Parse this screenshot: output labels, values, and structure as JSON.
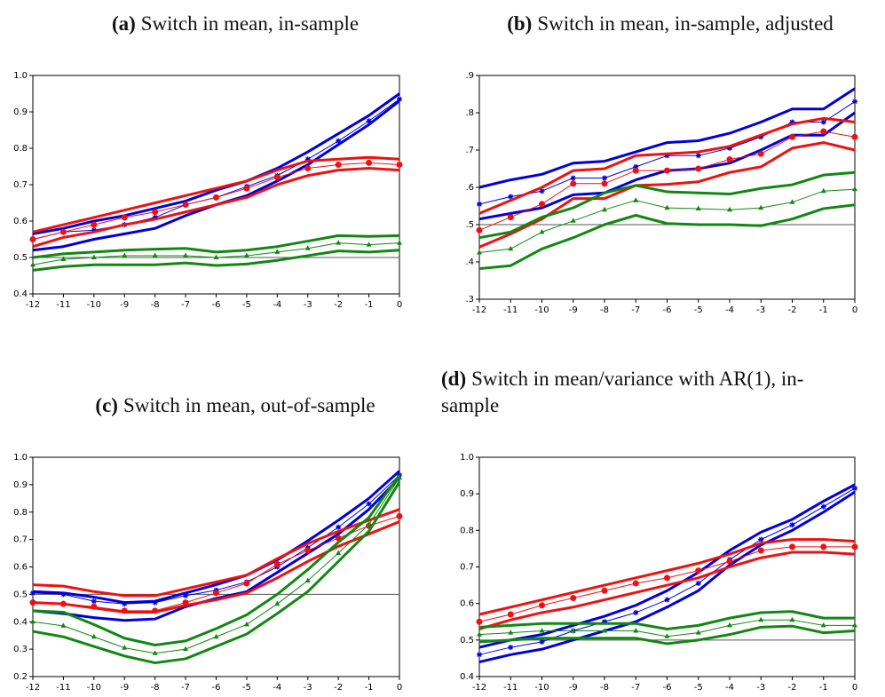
{
  "chart_data": [
    {
      "type": "line",
      "label": "(a)",
      "title": "Switch in mean, in-sample",
      "x": [
        -12,
        -11,
        -10,
        -9,
        -8,
        -7,
        -6,
        -5,
        -4,
        -3,
        -2,
        -1,
        0
      ],
      "xlim": [
        -12,
        0
      ],
      "xticks": [
        -12,
        -11,
        -10,
        -9,
        -8,
        -7,
        -6,
        -5,
        -4,
        -3,
        -2,
        -1,
        0
      ],
      "ylim": [
        0.4,
        1
      ],
      "yticks": [
        0.4,
        0.5,
        0.6,
        0.7,
        0.8,
        0.9,
        {
          "value": 1,
          "label": "1.0"
        }
      ],
      "hline": 0.5,
      "series": [
        {
          "color": "#0000dd",
          "width": 3,
          "values": [
            0.565,
            0.58,
            0.6,
            0.615,
            0.635,
            0.655,
            0.685,
            0.71,
            0.745,
            0.79,
            0.84,
            0.89,
            0.95
          ]
        },
        {
          "color": "#0000dd",
          "width": 3,
          "values": [
            0.52,
            0.53,
            0.55,
            0.565,
            0.58,
            0.615,
            0.645,
            0.67,
            0.71,
            0.755,
            0.81,
            0.865,
            0.93
          ]
        },
        {
          "color": "#0000dd",
          "width": 1,
          "marker": "star",
          "values": [
            0.55,
            0.57,
            0.575,
            0.59,
            0.61,
            0.645,
            0.665,
            0.695,
            0.725,
            0.77,
            0.82,
            0.875,
            0.935
          ]
        },
        {
          "color": "#ee1111",
          "width": 3,
          "values": [
            0.57,
            0.59,
            0.61,
            0.63,
            0.65,
            0.67,
            0.69,
            0.71,
            0.74,
            0.765,
            0.77,
            0.775,
            0.77
          ]
        },
        {
          "color": "#ee1111",
          "width": 3,
          "values": [
            0.53,
            0.555,
            0.57,
            0.59,
            0.605,
            0.625,
            0.645,
            0.665,
            0.7,
            0.725,
            0.74,
            0.745,
            0.74
          ]
        },
        {
          "color": "#ee1111",
          "width": 1,
          "marker": "circle",
          "values": [
            0.55,
            0.57,
            0.59,
            0.61,
            0.625,
            0.645,
            0.665,
            0.69,
            0.72,
            0.745,
            0.755,
            0.76,
            0.755
          ]
        },
        {
          "color": "#118811",
          "width": 3,
          "values": [
            0.5,
            0.51,
            0.515,
            0.52,
            0.523,
            0.525,
            0.515,
            0.52,
            0.53,
            0.545,
            0.56,
            0.558,
            0.56
          ]
        },
        {
          "color": "#118811",
          "width": 3,
          "values": [
            0.465,
            0.475,
            0.48,
            0.48,
            0.48,
            0.485,
            0.478,
            0.482,
            0.492,
            0.505,
            0.518,
            0.515,
            0.52
          ]
        },
        {
          "color": "#118811",
          "width": 1,
          "marker": "triangle",
          "values": [
            0.48,
            0.495,
            0.5,
            0.505,
            0.505,
            0.505,
            0.5,
            0.505,
            0.515,
            0.525,
            0.54,
            0.535,
            0.54
          ]
        }
      ]
    },
    {
      "type": "line",
      "label": "(b)",
      "title": "Switch in mean, in-sample, adjusted",
      "x": [
        -12,
        -11,
        -10,
        -9,
        -8,
        -7,
        -6,
        -5,
        -4,
        -3,
        -2,
        -1,
        0
      ],
      "xlim": [
        -12,
        0
      ],
      "xticks": [
        -12,
        -11,
        -10,
        -9,
        -8,
        -7,
        -6,
        -5,
        -4,
        -3,
        -2,
        -1,
        0
      ],
      "ylim": [
        0.3,
        0.9
      ],
      "yticks": [
        {
          "value": 0.3,
          "label": ".3"
        },
        {
          "value": 0.4,
          "label": ".4"
        },
        {
          "value": 0.5,
          "label": ".5"
        },
        {
          "value": 0.6,
          "label": ".6"
        },
        {
          "value": 0.7,
          "label": ".7"
        },
        {
          "value": 0.8,
          "label": ".8"
        },
        {
          "value": 0.9,
          "label": ".9"
        }
      ],
      "hline": 0.5,
      "series": [
        {
          "color": "#0000dd",
          "width": 3,
          "values": [
            0.6,
            0.62,
            0.635,
            0.665,
            0.67,
            0.695,
            0.72,
            0.725,
            0.745,
            0.775,
            0.81,
            0.81,
            0.865
          ]
        },
        {
          "color": "#0000dd",
          "width": 3,
          "values": [
            0.515,
            0.53,
            0.545,
            0.58,
            0.585,
            0.62,
            0.645,
            0.65,
            0.665,
            0.7,
            0.74,
            0.74,
            0.8
          ]
        },
        {
          "color": "#0000dd",
          "width": 1,
          "marker": "star",
          "values": [
            0.555,
            0.575,
            0.59,
            0.625,
            0.625,
            0.655,
            0.685,
            0.685,
            0.705,
            0.735,
            0.775,
            0.775,
            0.83
          ]
        },
        {
          "color": "#ee1111",
          "width": 3,
          "values": [
            0.53,
            0.565,
            0.6,
            0.645,
            0.65,
            0.685,
            0.69,
            0.695,
            0.71,
            0.74,
            0.77,
            0.785,
            0.775
          ]
        },
        {
          "color": "#ee1111",
          "width": 3,
          "values": [
            0.44,
            0.475,
            0.515,
            0.57,
            0.57,
            0.605,
            0.608,
            0.615,
            0.64,
            0.655,
            0.705,
            0.72,
            0.7
          ]
        },
        {
          "color": "#ee1111",
          "width": 1,
          "marker": "circle",
          "values": [
            0.485,
            0.52,
            0.555,
            0.61,
            0.61,
            0.645,
            0.645,
            0.65,
            0.675,
            0.69,
            0.735,
            0.75,
            0.735
          ]
        },
        {
          "color": "#118811",
          "width": 3,
          "values": [
            0.465,
            0.48,
            0.52,
            0.545,
            0.585,
            0.605,
            0.588,
            0.585,
            0.582,
            0.597,
            0.607,
            0.633,
            0.64
          ]
        },
        {
          "color": "#118811",
          "width": 3,
          "values": [
            0.382,
            0.39,
            0.435,
            0.465,
            0.5,
            0.525,
            0.503,
            0.5,
            0.5,
            0.497,
            0.515,
            0.543,
            0.553
          ]
        },
        {
          "color": "#118811",
          "width": 1,
          "marker": "triangle",
          "values": [
            0.425,
            0.435,
            0.48,
            0.51,
            0.54,
            0.565,
            0.545,
            0.543,
            0.54,
            0.545,
            0.56,
            0.59,
            0.595
          ]
        }
      ]
    },
    {
      "type": "line",
      "label": "(c)",
      "title": "Switch in mean, out-of-sample",
      "x": [
        -12,
        -11,
        -10,
        -9,
        -8,
        -7,
        -6,
        -5,
        -4,
        -3,
        -2,
        -1,
        0
      ],
      "xlim": [
        -12,
        0
      ],
      "xticks": [
        -12,
        -11,
        -10,
        -9,
        -8,
        -7,
        -6,
        -5,
        -4,
        -3,
        -2,
        -1,
        0
      ],
      "ylim": [
        0.2,
        1
      ],
      "yticks": [
        0.2,
        0.3,
        0.4,
        0.5,
        0.6,
        0.7,
        0.8,
        0.9,
        {
          "value": 1,
          "label": "1.0"
        }
      ],
      "hline": 0.5,
      "series": [
        {
          "color": "#0000dd",
          "width": 3,
          "values": [
            0.51,
            0.505,
            0.49,
            0.47,
            0.475,
            0.505,
            0.535,
            0.57,
            0.625,
            0.695,
            0.77,
            0.85,
            0.95
          ]
        },
        {
          "color": "#0000dd",
          "width": 3,
          "values": [
            0.44,
            0.43,
            0.415,
            0.405,
            0.41,
            0.455,
            0.485,
            0.51,
            0.58,
            0.65,
            0.72,
            0.81,
            0.925
          ]
        },
        {
          "color": "#0000dd",
          "width": 1,
          "marker": "star",
          "values": [
            0.505,
            0.5,
            0.475,
            0.465,
            0.47,
            0.495,
            0.515,
            0.545,
            0.6,
            0.67,
            0.745,
            0.83,
            0.935
          ]
        },
        {
          "color": "#ee1111",
          "width": 3,
          "values": [
            0.535,
            0.53,
            0.51,
            0.495,
            0.495,
            0.52,
            0.545,
            0.57,
            0.63,
            0.685,
            0.73,
            0.77,
            0.81
          ]
        },
        {
          "color": "#ee1111",
          "width": 3,
          "values": [
            0.47,
            0.465,
            0.45,
            0.435,
            0.435,
            0.46,
            0.48,
            0.505,
            0.56,
            0.62,
            0.675,
            0.72,
            0.765
          ]
        },
        {
          "color": "#ee1111",
          "width": 1,
          "marker": "circle",
          "values": [
            0.47,
            0.465,
            0.455,
            0.44,
            0.44,
            0.47,
            0.505,
            0.54,
            0.61,
            0.66,
            0.705,
            0.75,
            0.785
          ]
        },
        {
          "color": "#118811",
          "width": 3,
          "values": [
            0.44,
            0.435,
            0.39,
            0.34,
            0.315,
            0.33,
            0.375,
            0.425,
            0.5,
            0.59,
            0.69,
            0.78,
            0.935
          ]
        },
        {
          "color": "#118811",
          "width": 3,
          "values": [
            0.365,
            0.345,
            0.31,
            0.275,
            0.25,
            0.265,
            0.31,
            0.355,
            0.43,
            0.51,
            0.62,
            0.73,
            0.91
          ]
        },
        {
          "color": "#118811",
          "width": 1,
          "marker": "triangle",
          "values": [
            0.4,
            0.385,
            0.345,
            0.305,
            0.285,
            0.3,
            0.345,
            0.39,
            0.465,
            0.55,
            0.65,
            0.755,
            0.925
          ]
        }
      ]
    },
    {
      "type": "line",
      "label": "(d)",
      "title": "Switch in mean/variance with AR(1), in-sample",
      "x": [
        -12,
        -11,
        -10,
        -9,
        -8,
        -7,
        -6,
        -5,
        -4,
        -3,
        -2,
        -1,
        0
      ],
      "xlim": [
        -12,
        0
      ],
      "xticks": [
        -12,
        -11,
        -10,
        -9,
        -8,
        -7,
        -6,
        -5,
        -4,
        -3,
        -2,
        -1,
        0
      ],
      "ylim": [
        0.4,
        1
      ],
      "yticks": [
        0.4,
        0.5,
        0.6,
        0.7,
        0.8,
        0.9,
        {
          "value": 1,
          "label": "1.0"
        }
      ],
      "hline": 0.5,
      "series": [
        {
          "color": "#0000dd",
          "width": 3,
          "values": [
            0.48,
            0.5,
            0.515,
            0.54,
            0.565,
            0.595,
            0.635,
            0.685,
            0.745,
            0.795,
            0.83,
            0.88,
            0.925
          ]
        },
        {
          "color": "#0000dd",
          "width": 3,
          "values": [
            0.44,
            0.46,
            0.475,
            0.5,
            0.525,
            0.55,
            0.59,
            0.635,
            0.705,
            0.76,
            0.8,
            0.85,
            0.905
          ]
        },
        {
          "color": "#0000dd",
          "width": 1,
          "marker": "star",
          "values": [
            0.46,
            0.48,
            0.495,
            0.525,
            0.55,
            0.575,
            0.61,
            0.655,
            0.72,
            0.775,
            0.815,
            0.865,
            0.915
          ]
        },
        {
          "color": "#ee1111",
          "width": 3,
          "values": [
            0.57,
            0.59,
            0.61,
            0.63,
            0.65,
            0.67,
            0.69,
            0.71,
            0.735,
            0.765,
            0.775,
            0.775,
            0.77
          ]
        },
        {
          "color": "#ee1111",
          "width": 3,
          "values": [
            0.53,
            0.555,
            0.575,
            0.59,
            0.61,
            0.63,
            0.65,
            0.67,
            0.7,
            0.725,
            0.74,
            0.74,
            0.735
          ]
        },
        {
          "color": "#ee1111",
          "width": 1,
          "marker": "circle",
          "values": [
            0.55,
            0.57,
            0.595,
            0.615,
            0.635,
            0.655,
            0.67,
            0.69,
            0.715,
            0.745,
            0.755,
            0.755,
            0.755
          ]
        },
        {
          "color": "#118811",
          "width": 3,
          "values": [
            0.535,
            0.54,
            0.545,
            0.545,
            0.545,
            0.545,
            0.53,
            0.54,
            0.56,
            0.575,
            0.578,
            0.56,
            0.56
          ]
        },
        {
          "color": "#118811",
          "width": 3,
          "values": [
            0.495,
            0.5,
            0.505,
            0.505,
            0.505,
            0.505,
            0.49,
            0.5,
            0.515,
            0.535,
            0.538,
            0.52,
            0.525
          ]
        },
        {
          "color": "#118811",
          "width": 1,
          "marker": "triangle",
          "values": [
            0.515,
            0.52,
            0.525,
            0.525,
            0.525,
            0.525,
            0.51,
            0.52,
            0.54,
            0.555,
            0.555,
            0.54,
            0.54
          ]
        }
      ]
    }
  ]
}
